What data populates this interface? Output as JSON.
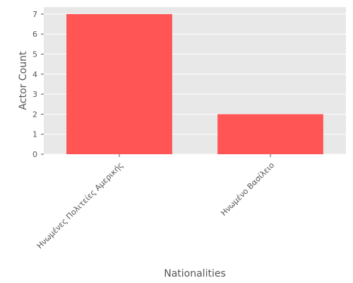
{
  "chart_data": {
    "type": "bar",
    "title": "",
    "xlabel": "Nationalities",
    "ylabel": "Actor Count",
    "categories": [
      "Ηνωμένες Πολιτείες Αμερικής",
      "Ηνωμένο Βασίλειο"
    ],
    "values": [
      7,
      2
    ],
    "ylim": [
      0,
      7.35
    ],
    "yticks": [
      0,
      1,
      2,
      3,
      4,
      5,
      6,
      7
    ],
    "grid": true,
    "legend": "none",
    "colors": {
      "bar": "#ff5555",
      "plot_background": "#e8e8e8",
      "grid": "#ffffff",
      "text": "#555555"
    }
  }
}
